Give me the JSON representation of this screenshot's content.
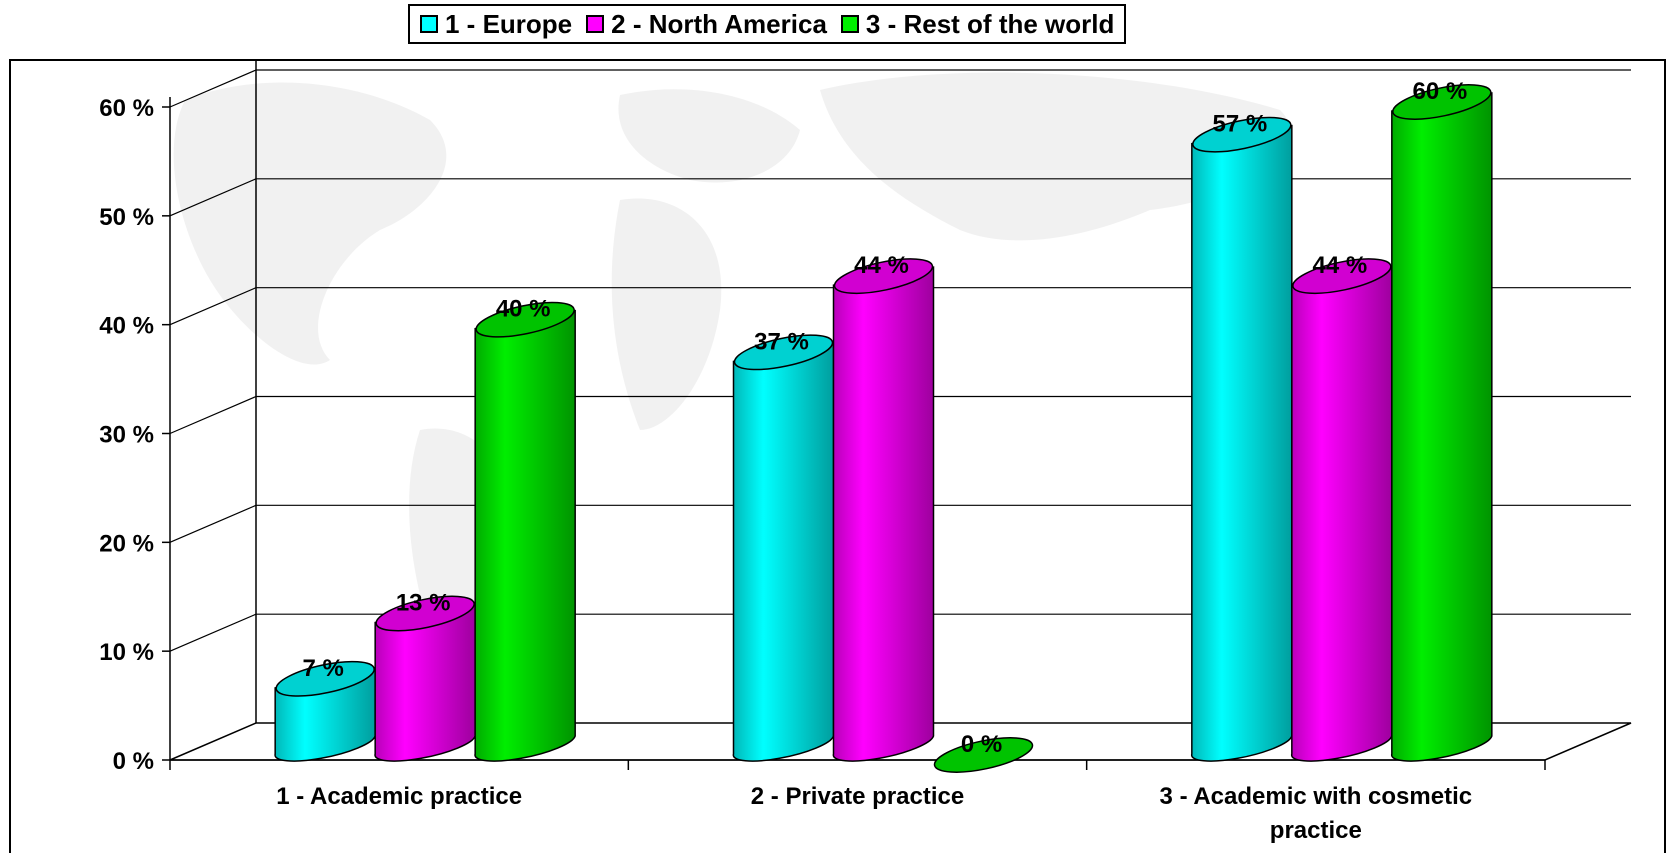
{
  "chart_data": {
    "type": "bar",
    "title": "",
    "xlabel": "",
    "ylabel": "",
    "categories": [
      "1 - Academic practice",
      "2 - Private practice",
      "3 - Academic with cosmetic practice"
    ],
    "series": [
      {
        "name": "1 - Europe",
        "color": "#00FFFF",
        "values": [
          7,
          37,
          57
        ]
      },
      {
        "name": "2 - North America",
        "color": "#FF00FF",
        "values": [
          13,
          44,
          44
        ]
      },
      {
        "name": "3 - Rest of the world",
        "color": "#00EE00",
        "values": [
          40,
          0,
          60
        ]
      }
    ],
    "value_labels": [
      [
        "7 %",
        "37 %",
        "57 %"
      ],
      [
        "13 %",
        "44 %",
        "44 %"
      ],
      [
        "40 %",
        "0 %",
        "60 %"
      ]
    ],
    "y_ticks": [
      "0 %",
      "10 %",
      "20 %",
      "30 %",
      "40 %",
      "50 %",
      "60 %"
    ],
    "ylim": [
      0,
      60
    ],
    "grid": true,
    "legend": "top-center",
    "style": "3d-cylinder"
  }
}
